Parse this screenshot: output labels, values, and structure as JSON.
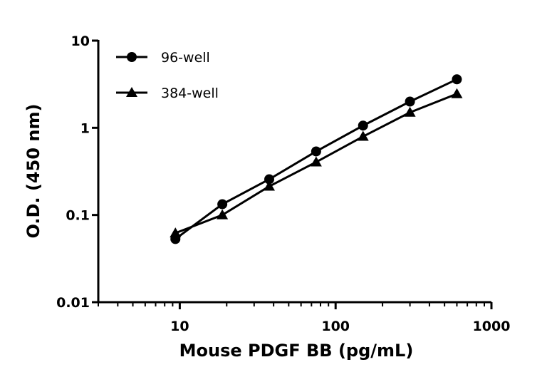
{
  "chart_data": {
    "type": "line",
    "title": "",
    "xlabel": "Mouse PDGF BB (pg/mL)",
    "ylabel": "O.D. (450 nm)",
    "x_scale": "log",
    "y_scale": "log",
    "xlim": [
      3,
      1000
    ],
    "ylim": [
      0.01,
      10
    ],
    "x_ticks": [
      10,
      100,
      1000
    ],
    "x_tick_labels": [
      "10",
      "100",
      "1000"
    ],
    "y_ticks": [
      0.01,
      0.1,
      1,
      10
    ],
    "y_tick_labels": [
      "0.01",
      "0.1",
      "1",
      "10"
    ],
    "grid": false,
    "legend_position": "top-left",
    "x": [
      9.375,
      18.75,
      37.5,
      75,
      150,
      300,
      600
    ],
    "series": [
      {
        "name": "96-well",
        "marker": "circle",
        "values": [
          0.053,
          0.133,
          0.257,
          0.536,
          1.06,
          2.0,
          3.6
        ]
      },
      {
        "name": "384-well",
        "marker": "triangle",
        "values": [
          0.062,
          0.1,
          0.213,
          0.404,
          0.795,
          1.5,
          2.45
        ]
      }
    ],
    "color": "#000000"
  }
}
